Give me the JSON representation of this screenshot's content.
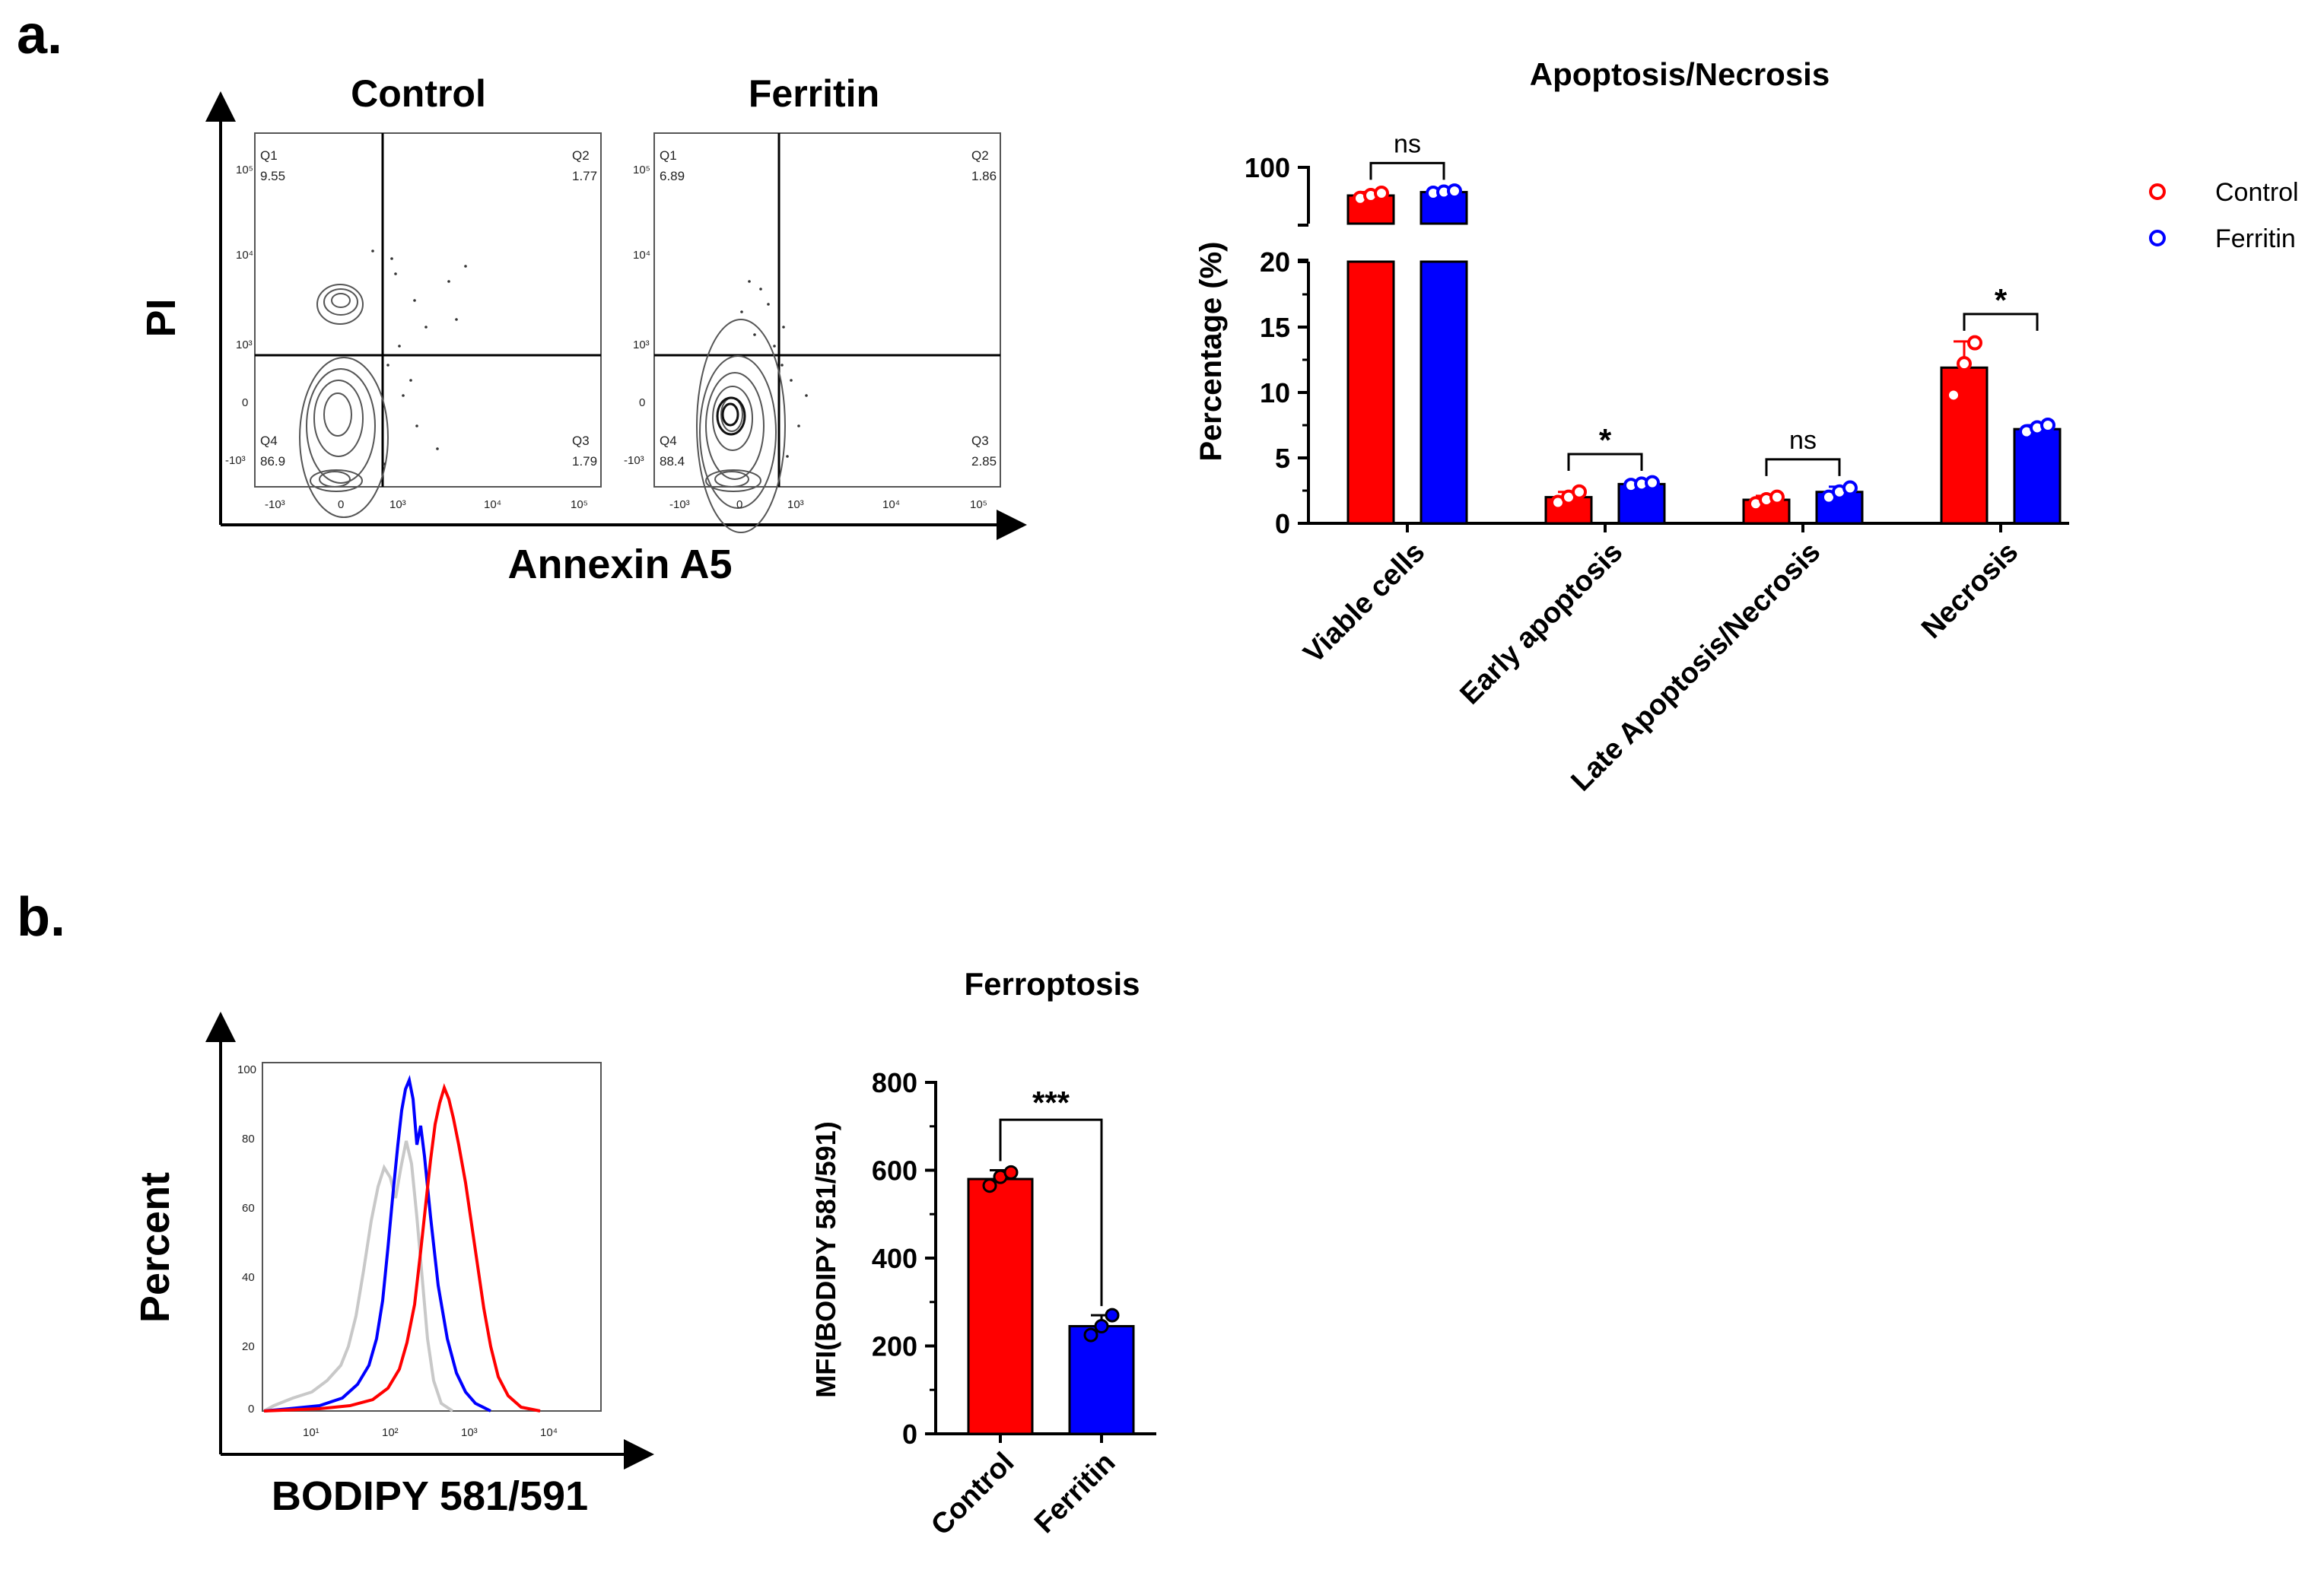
{
  "panels": {
    "a": "a.",
    "b": "b."
  },
  "colors": {
    "control": "#ff0000",
    "ferritin": "#0000ff",
    "isotype": "#c8c8c8",
    "axis": "#000000"
  },
  "facs": {
    "ylabel": "PI",
    "xlabel": "Annexin  A5",
    "plots": [
      {
        "title": "Control",
        "quadrants": [
          {
            "name": "Q1",
            "value": "9.55"
          },
          {
            "name": "Q2",
            "value": "1.77"
          },
          {
            "name": "Q4",
            "value": "86.9"
          },
          {
            "name": "Q3",
            "value": "1.79"
          }
        ]
      },
      {
        "title": "Ferritin",
        "quadrants": [
          {
            "name": "Q1",
            "value": "6.89"
          },
          {
            "name": "Q2",
            "value": "1.86"
          },
          {
            "name": "Q4",
            "value": "88.4"
          },
          {
            "name": "Q3",
            "value": "2.85"
          }
        ]
      }
    ],
    "yticks": [
      "10⁵",
      "10⁴",
      "10³",
      "0",
      "-10³"
    ],
    "xticks": [
      "-10³",
      "0",
      "10³",
      "10⁴",
      "10⁵"
    ]
  },
  "histogram": {
    "ylabel": "Percent",
    "xlabel": "BODIPY 581/591",
    "yticks": [
      "100",
      "80",
      "60",
      "40",
      "20",
      "0"
    ],
    "xticks": [
      "10¹",
      "10²",
      "10³",
      "10⁴"
    ]
  },
  "chart_data": [
    {
      "type": "bar",
      "title": "Apoptosis/Necrosis",
      "ylabel": "Percentage (%)",
      "xlabel": "",
      "categories": [
        "Viable cells",
        "Early apoptosis",
        "Late Apoptosis/Necrosis",
        "Necrosis"
      ],
      "series": [
        {
          "name": "Control",
          "values": [
            95.0,
            2.0,
            1.8,
            11.9
          ],
          "error": [
            0.6,
            0.4,
            0.3,
            2.0
          ],
          "points": [
            [
              94.5,
              95.0,
              95.4
            ],
            [
              1.6,
              2.0,
              2.4
            ],
            [
              1.5,
              1.8,
              2.0
            ],
            [
              9.8,
              12.2,
              13.8
            ]
          ]
        },
        {
          "name": "Ferritin",
          "values": [
            95.6,
            3.0,
            2.4,
            7.2
          ],
          "error": [
            0.3,
            0.2,
            0.4,
            0.3
          ],
          "points": [
            [
              95.4,
              95.6,
              95.8
            ],
            [
              2.9,
              3.0,
              3.1
            ],
            [
              2.0,
              2.4,
              2.7
            ],
            [
              7.0,
              7.3,
              7.5
            ]
          ]
        }
      ],
      "y_axis_break": {
        "lower_range": [
          0,
          20
        ],
        "upper_range": [
          90,
          100
        ]
      },
      "yticks": [
        "0",
        "5",
        "10",
        "15",
        "20",
        "100"
      ],
      "ylim": [
        0,
        100
      ],
      "significance": [
        "ns",
        "*",
        "ns",
        "*"
      ],
      "legend": {
        "position": "top-right",
        "entries": [
          "Control",
          "Ferritin"
        ]
      }
    },
    {
      "type": "bar",
      "title": "Ferroptosis",
      "ylabel": "MFI(BODIPY 581/591)",
      "xlabel": "",
      "categories": [
        "Control",
        "Ferritin"
      ],
      "values": [
        580,
        245
      ],
      "error": [
        20,
        25
      ],
      "points": [
        [
          565,
          585,
          595
        ],
        [
          225,
          245,
          270
        ]
      ],
      "yticks": [
        "0",
        "200",
        "400",
        "600",
        "800"
      ],
      "ylim": [
        0,
        800
      ],
      "significance": "***"
    }
  ]
}
